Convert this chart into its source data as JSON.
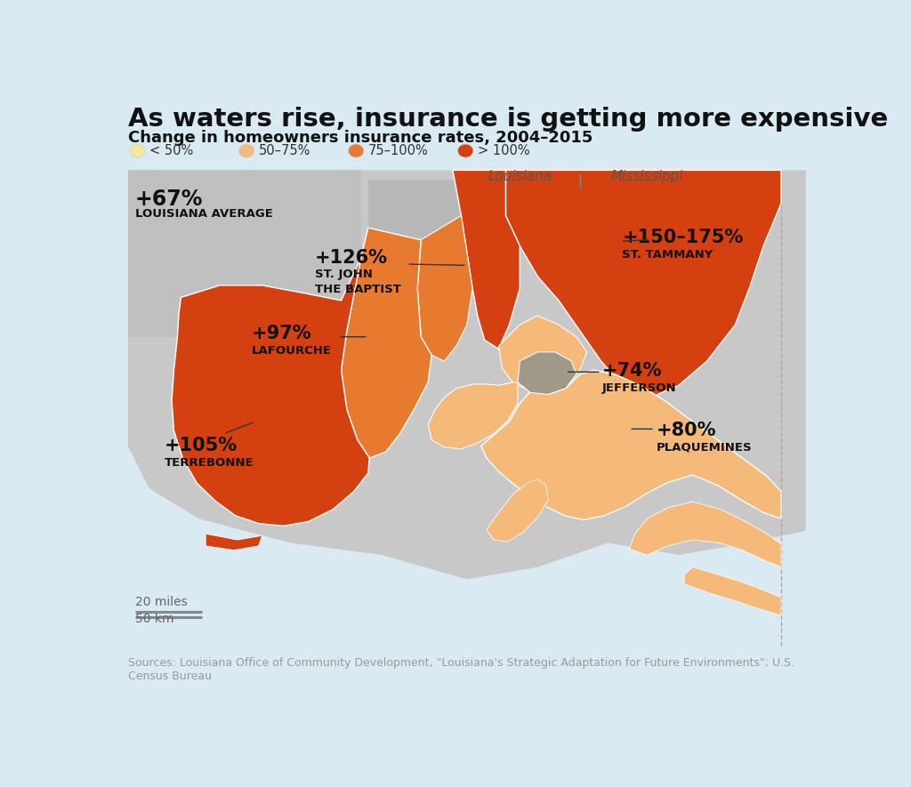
{
  "title": "As waters rise, insurance is getting more expensive",
  "subtitle": "Change in homeowners insurance rates, 2004–2015",
  "background_color": "#daeaf3",
  "legend_items": [
    {
      "label": "< 50%",
      "color": "#f5e6a0"
    },
    {
      "label": "50–75%",
      "color": "#f5b97a"
    },
    {
      "label": "75–100%",
      "color": "#e87a30"
    },
    {
      "label": "> 100%",
      "color": "#d44010"
    }
  ],
  "scale_bar_text1": "20 miles",
  "scale_bar_text2": "50 km",
  "source_text": "Sources: Louisiana Office of Community Development, \"Louisiana's Strategic Adaptation for Future Environments\"; U.S.\nCensus Bureau",
  "c_lt50": "#f5e6a0",
  "c_5075": "#f5b97a",
  "c_75100": "#e87a30",
  "c_gt100": "#d44010",
  "c_gray_land": "#c8c8c8",
  "c_water": "#daeaf3",
  "c_urban": "#b0b0b0",
  "c_orleans": "#a09888"
}
